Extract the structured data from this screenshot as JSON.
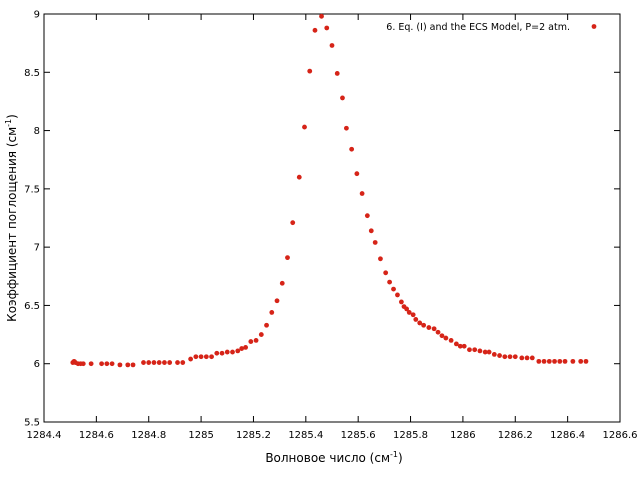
{
  "chart_data": {
    "type": "scatter",
    "title": "",
    "xlabel": "Волновое число (см",
    "xlabel_sup": "-1",
    "xlabel_tail": ")",
    "ylabel": "Коэффициент поглощения (см",
    "ylabel_sup": "-1",
    "ylabel_tail": ")",
    "xlim": [
      1284.4,
      1286.6
    ],
    "ylim": [
      5.5,
      9
    ],
    "x_ticks": [
      1284.4,
      1284.6,
      1284.8,
      1285,
      1285.2,
      1285.4,
      1285.6,
      1285.8,
      1286,
      1286.2,
      1286.4,
      1286.6
    ],
    "x_tick_labels": [
      "1284.4",
      "1284.6",
      "1284.8",
      "1285",
      "1285.2",
      "1285.4",
      "1285.6",
      "1285.8",
      "1286",
      "1286.2",
      "1286.4",
      "1286.6"
    ],
    "y_ticks": [
      5.5,
      6,
      6.5,
      7,
      7.5,
      8,
      8.5,
      9
    ],
    "y_tick_labels": [
      "5.5",
      "6",
      "6.5",
      "7",
      "7.5",
      "8",
      "8.5",
      "9"
    ],
    "grid": false,
    "legend_position": "top-right",
    "series": [
      {
        "name": "6. Eq. (I) and the ECS Model, P=2 atm.",
        "color": "#d62418",
        "points": [
          [
            1284.51,
            6.01
          ],
          [
            1284.515,
            6.02
          ],
          [
            1284.52,
            6.01
          ],
          [
            1284.53,
            6.0
          ],
          [
            1284.54,
            6.0
          ],
          [
            1284.55,
            6.0
          ],
          [
            1284.58,
            6.0
          ],
          [
            1284.62,
            6.0
          ],
          [
            1284.64,
            6.0
          ],
          [
            1284.66,
            6.0
          ],
          [
            1284.69,
            5.99
          ],
          [
            1284.72,
            5.99
          ],
          [
            1284.74,
            5.99
          ],
          [
            1284.78,
            6.01
          ],
          [
            1284.8,
            6.01
          ],
          [
            1284.82,
            6.01
          ],
          [
            1284.84,
            6.01
          ],
          [
            1284.86,
            6.01
          ],
          [
            1284.88,
            6.01
          ],
          [
            1284.91,
            6.01
          ],
          [
            1284.93,
            6.01
          ],
          [
            1284.96,
            6.04
          ],
          [
            1284.98,
            6.06
          ],
          [
            1285.0,
            6.06
          ],
          [
            1285.02,
            6.06
          ],
          [
            1285.04,
            6.06
          ],
          [
            1285.06,
            6.09
          ],
          [
            1285.08,
            6.09
          ],
          [
            1285.1,
            6.1
          ],
          [
            1285.12,
            6.1
          ],
          [
            1285.14,
            6.11
          ],
          [
            1285.155,
            6.13
          ],
          [
            1285.17,
            6.14
          ],
          [
            1285.19,
            6.19
          ],
          [
            1285.21,
            6.2
          ],
          [
            1285.23,
            6.25
          ],
          [
            1285.25,
            6.33
          ],
          [
            1285.27,
            6.44
          ],
          [
            1285.29,
            6.54
          ],
          [
            1285.31,
            6.69
          ],
          [
            1285.33,
            6.91
          ],
          [
            1285.35,
            7.21
          ],
          [
            1285.375,
            7.6
          ],
          [
            1285.395,
            8.03
          ],
          [
            1285.415,
            8.51
          ],
          [
            1285.435,
            8.86
          ],
          [
            1285.46,
            8.98
          ],
          [
            1285.48,
            8.88
          ],
          [
            1285.5,
            8.73
          ],
          [
            1285.52,
            8.49
          ],
          [
            1285.54,
            8.28
          ],
          [
            1285.555,
            8.02
          ],
          [
            1285.575,
            7.84
          ],
          [
            1285.595,
            7.63
          ],
          [
            1285.615,
            7.46
          ],
          [
            1285.635,
            7.27
          ],
          [
            1285.65,
            7.14
          ],
          [
            1285.665,
            7.04
          ],
          [
            1285.685,
            6.9
          ],
          [
            1285.705,
            6.78
          ],
          [
            1285.72,
            6.7
          ],
          [
            1285.735,
            6.64
          ],
          [
            1285.75,
            6.59
          ],
          [
            1285.765,
            6.53
          ],
          [
            1285.775,
            6.49
          ],
          [
            1285.785,
            6.47
          ],
          [
            1285.795,
            6.44
          ],
          [
            1285.81,
            6.42
          ],
          [
            1285.82,
            6.38
          ],
          [
            1285.835,
            6.35
          ],
          [
            1285.85,
            6.33
          ],
          [
            1285.87,
            6.31
          ],
          [
            1285.89,
            6.3
          ],
          [
            1285.905,
            6.27
          ],
          [
            1285.92,
            6.24
          ],
          [
            1285.935,
            6.22
          ],
          [
            1285.955,
            6.2
          ],
          [
            1285.975,
            6.17
          ],
          [
            1285.99,
            6.15
          ],
          [
            1286.005,
            6.15
          ],
          [
            1286.025,
            6.12
          ],
          [
            1286.045,
            6.12
          ],
          [
            1286.065,
            6.11
          ],
          [
            1286.085,
            6.1
          ],
          [
            1286.1,
            6.1
          ],
          [
            1286.12,
            6.08
          ],
          [
            1286.14,
            6.07
          ],
          [
            1286.16,
            6.06
          ],
          [
            1286.18,
            6.06
          ],
          [
            1286.2,
            6.06
          ],
          [
            1286.225,
            6.05
          ],
          [
            1286.245,
            6.05
          ],
          [
            1286.265,
            6.05
          ],
          [
            1286.29,
            6.02
          ],
          [
            1286.31,
            6.02
          ],
          [
            1286.33,
            6.02
          ],
          [
            1286.35,
            6.02
          ],
          [
            1286.37,
            6.02
          ],
          [
            1286.39,
            6.02
          ],
          [
            1286.42,
            6.02
          ],
          [
            1286.45,
            6.02
          ],
          [
            1286.47,
            6.02
          ]
        ]
      }
    ]
  }
}
